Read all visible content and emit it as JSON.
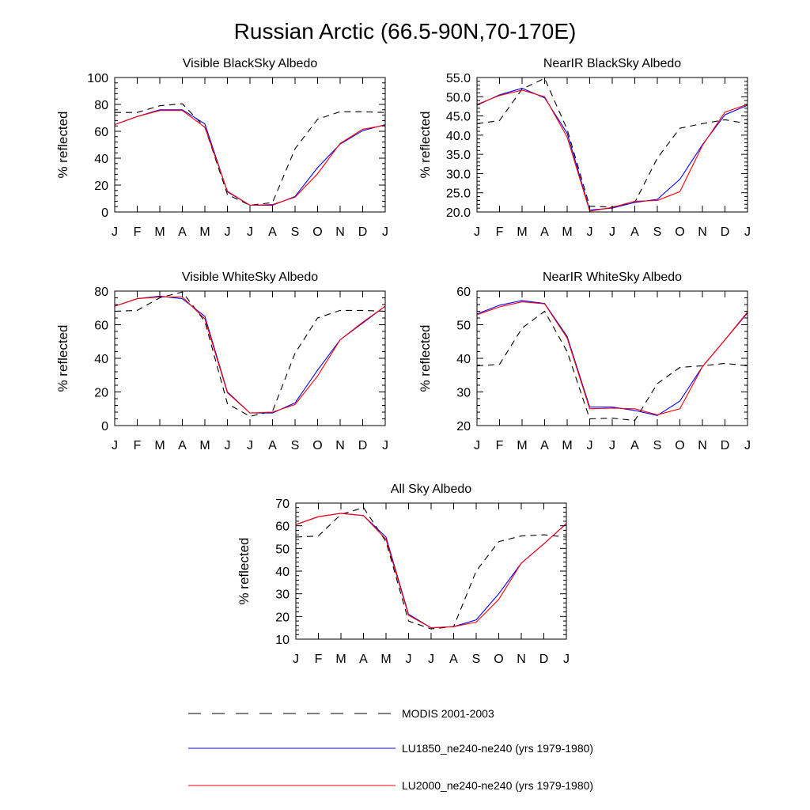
{
  "page": {
    "title": "Russian Arctic (66.5-90N,70-170E)"
  },
  "legend": [
    {
      "label": "MODIS 2001-2003",
      "color": "#000000",
      "dash": "dashed"
    },
    {
      "label": "LU1850_ne240-ne240 (yrs 1979-1980)",
      "color": "#0000ff",
      "dash": "solid"
    },
    {
      "label": "LU2000_ne240-ne240 (yrs 1979-1980)",
      "color": "#ff0000",
      "dash": "solid"
    }
  ],
  "chart_data": [
    {
      "type": "line",
      "title": "Visible BlackSky Albedo",
      "xlabel": "",
      "ylabel": "% reflected",
      "categories": [
        "J",
        "F",
        "M",
        "A",
        "M",
        "J",
        "J",
        "A",
        "S",
        "O",
        "N",
        "D",
        "J"
      ],
      "ylim": [
        0,
        100
      ],
      "yticks": [
        0,
        20,
        40,
        60,
        80,
        100
      ],
      "ytick_labels": [
        "0",
        "20",
        "40",
        "60",
        "80",
        "100"
      ],
      "grid": false,
      "series": [
        {
          "name": "MODIS 2001-2003",
          "values": [
            74,
            74,
            79,
            80.5,
            63,
            13,
            5,
            7,
            47,
            69,
            74.5,
            74.5,
            74
          ]
        },
        {
          "name": "LU1850_ne240-ne240 (yrs 1979-1980)",
          "values": [
            65,
            71,
            76,
            76,
            65.5,
            15,
            5,
            5,
            11.5,
            33,
            50.5,
            60.5,
            65
          ]
        },
        {
          "name": "LU2000_ne240-ne240 (yrs 1979-1980)",
          "values": [
            65,
            71,
            75.5,
            75.5,
            63,
            15.5,
            5,
            5.5,
            11,
            28.5,
            51,
            61.5,
            64.5
          ]
        }
      ]
    },
    {
      "type": "line",
      "title": "NearIR BlackSky Albedo",
      "xlabel": "",
      "ylabel": "% reflected",
      "categories": [
        "J",
        "F",
        "M",
        "A",
        "M",
        "J",
        "J",
        "A",
        "S",
        "O",
        "N",
        "D",
        "J"
      ],
      "ylim": [
        20,
        55
      ],
      "yticks": [
        20,
        25,
        30,
        35,
        40,
        45,
        50,
        55
      ],
      "ytick_labels": [
        "20.0",
        "25.0",
        "30.0",
        "35.0",
        "40.0",
        "45.0",
        "50.0",
        "55.0"
      ],
      "grid": false,
      "series": [
        {
          "name": "MODIS 2001-2003",
          "values": [
            43,
            43.8,
            52,
            54.8,
            41.5,
            21.5,
            21.3,
            22.5,
            34,
            41.8,
            43,
            44,
            43
          ]
        },
        {
          "name": "LU1850_ne240-ne240 (yrs 1979-1980)",
          "values": [
            47.8,
            50.5,
            52.2,
            49.7,
            40.5,
            20.5,
            21,
            22.5,
            23.3,
            28.5,
            37.5,
            45.3,
            47.8
          ]
        },
        {
          "name": "LU2000_ne240-ne240 (yrs 1979-1980)",
          "values": [
            48,
            50.3,
            51.7,
            50,
            39.5,
            20.2,
            21.2,
            22.8,
            23,
            25.3,
            37.3,
            46,
            48
          ]
        }
      ]
    },
    {
      "type": "line",
      "title": "Visible WhiteSky Albedo",
      "xlabel": "",
      "ylabel": "% reflected",
      "categories": [
        "J",
        "F",
        "M",
        "A",
        "M",
        "J",
        "J",
        "A",
        "S",
        "O",
        "N",
        "D",
        "J"
      ],
      "ylim": [
        0,
        80
      ],
      "yticks": [
        0,
        20,
        40,
        60,
        80
      ],
      "ytick_labels": [
        "0",
        "20",
        "40",
        "60",
        "80"
      ],
      "grid": false,
      "series": [
        {
          "name": "MODIS 2001-2003",
          "values": [
            68,
            68.5,
            76,
            79.5,
            62,
            13,
            5.5,
            8.5,
            43,
            64,
            68.5,
            68.5,
            68
          ]
        },
        {
          "name": "LU1850_ne240-ne240 (yrs 1979-1980)",
          "values": [
            71,
            75.5,
            77,
            75.5,
            65,
            20,
            7.5,
            7.5,
            13.5,
            33,
            51,
            61,
            71
          ]
        },
        {
          "name": "LU2000_ne240-ne240 (yrs 1979-1980)",
          "values": [
            71,
            75.5,
            76.5,
            76.5,
            63.5,
            19.5,
            7.5,
            8,
            12.5,
            29.5,
            51,
            61.5,
            71
          ]
        }
      ]
    },
    {
      "type": "line",
      "title": "NearIR WhiteSky Albedo",
      "xlabel": "",
      "ylabel": "% reflected",
      "categories": [
        "J",
        "F",
        "M",
        "A",
        "M",
        "J",
        "J",
        "A",
        "S",
        "O",
        "N",
        "D",
        "J"
      ],
      "ylim": [
        20,
        60
      ],
      "yticks": [
        20,
        30,
        40,
        50,
        60
      ],
      "ytick_labels": [
        "20",
        "30",
        "40",
        "50",
        "60"
      ],
      "grid": false,
      "series": [
        {
          "name": "MODIS 2001-2003",
          "values": [
            37.8,
            38.2,
            49,
            54,
            42,
            22,
            22.2,
            21.5,
            32.5,
            37.3,
            37.8,
            38.5,
            37.8
          ]
        },
        {
          "name": "LU1850_ne240-ne240 (yrs 1979-1980)",
          "values": [
            53.2,
            55.8,
            57.2,
            56.3,
            46.5,
            25.5,
            25.5,
            24.5,
            23,
            27.3,
            37.5,
            45.5,
            53.5
          ]
        },
        {
          "name": "LU2000_ne240-ne240 (yrs 1979-1980)",
          "values": [
            53,
            55.3,
            56.8,
            56.2,
            46,
            25,
            25.2,
            25,
            23.2,
            25,
            37.5,
            45.5,
            53.8
          ]
        }
      ]
    },
    {
      "type": "line",
      "title": "All Sky Albedo",
      "xlabel": "",
      "ylabel": "% reflected",
      "categories": [
        "J",
        "F",
        "M",
        "A",
        "M",
        "J",
        "J",
        "A",
        "S",
        "O",
        "N",
        "D",
        "J"
      ],
      "ylim": [
        10,
        70
      ],
      "yticks": [
        10,
        20,
        30,
        40,
        50,
        60,
        70
      ],
      "ytick_labels": [
        "10",
        "20",
        "30",
        "40",
        "50",
        "60",
        "70"
      ],
      "grid": false,
      "series": [
        {
          "name": "MODIS 2001-2003",
          "values": [
            55,
            55.5,
            65,
            68,
            53,
            18,
            14.5,
            15.5,
            40,
            53,
            55.5,
            56,
            55
          ]
        },
        {
          "name": "LU1850_ne240-ne240 (yrs 1979-1980)",
          "values": [
            60.5,
            64,
            65.5,
            64.5,
            55,
            21,
            15,
            15.5,
            18.5,
            30,
            43.5,
            52,
            61
          ]
        },
        {
          "name": "LU2000_ne240-ne240 (yrs 1979-1980)",
          "values": [
            60.5,
            64,
            65.5,
            64.5,
            54,
            20.5,
            15,
            15.5,
            17.5,
            27.5,
            43.5,
            52,
            61
          ]
        }
      ]
    }
  ]
}
